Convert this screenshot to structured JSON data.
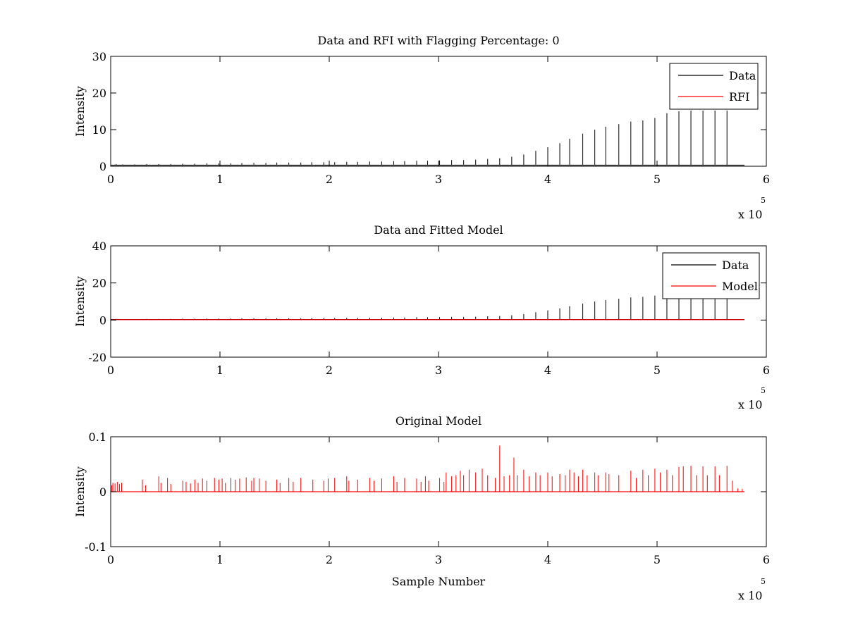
{
  "figure": {
    "background": "#ffffff"
  },
  "chart_data": [
    {
      "type": "line",
      "title": "Data and RFI with Flagging Percentage: 0",
      "xlabel": "",
      "ylabel": "Intensity",
      "xlim": [
        0,
        6
      ],
      "ylim": [
        0,
        30
      ],
      "x_multiplier": "x 10",
      "x_multiplier_exp": "5",
      "xticks": [
        0,
        1,
        2,
        3,
        4,
        5,
        6
      ],
      "yticks": [
        0,
        10,
        20,
        30
      ],
      "xtick_labels": [
        "0",
        "1",
        "2",
        "3",
        "4",
        "5",
        "6"
      ],
      "ytick_labels": [
        "0",
        "10",
        "20",
        "30"
      ],
      "legend": {
        "placement": "top-right",
        "entries": [
          {
            "label": "Data",
            "color": "#000000"
          },
          {
            "label": "RFI",
            "color": "#ff0000"
          }
        ]
      },
      "series": [
        {
          "name": "Data",
          "color": "#000000",
          "baseline": 0.3,
          "x_end": 5.8,
          "spikes": [
            [
              0.05,
              0.6
            ],
            [
              0.11,
              0.5
            ],
            [
              0.22,
              0.5
            ],
            [
              0.33,
              0.6
            ],
            [
              0.44,
              0.6
            ],
            [
              0.55,
              0.6
            ],
            [
              0.66,
              0.7
            ],
            [
              0.77,
              0.7
            ],
            [
              0.88,
              0.8
            ],
            [
              0.99,
              0.8
            ],
            [
              1.1,
              0.8
            ],
            [
              1.2,
              0.9
            ],
            [
              1.31,
              0.9
            ],
            [
              1.42,
              0.9
            ],
            [
              1.52,
              1.0
            ],
            [
              1.63,
              1.0
            ],
            [
              1.74,
              1.0
            ],
            [
              1.84,
              1.1
            ],
            [
              1.95,
              1.1
            ],
            [
              2.05,
              1.1
            ],
            [
              2.16,
              1.2
            ],
            [
              2.26,
              1.2
            ],
            [
              2.37,
              1.3
            ],
            [
              2.48,
              1.3
            ],
            [
              2.59,
              1.4
            ],
            [
              2.69,
              1.4
            ],
            [
              2.8,
              1.5
            ],
            [
              2.9,
              1.5
            ],
            [
              3.01,
              1.6
            ],
            [
              3.12,
              1.7
            ],
            [
              3.23,
              1.7
            ],
            [
              3.34,
              1.8
            ],
            [
              3.45,
              2.0
            ],
            [
              3.56,
              2.2
            ],
            [
              3.67,
              2.6
            ],
            [
              3.78,
              3.2
            ],
            [
              3.89,
              4.2
            ],
            [
              4.0,
              5.2
            ],
            [
              4.11,
              6.3
            ],
            [
              4.2,
              7.5
            ],
            [
              4.32,
              8.9
            ],
            [
              4.43,
              10.0
            ],
            [
              4.53,
              10.8
            ],
            [
              4.65,
              11.5
            ],
            [
              4.76,
              12.2
            ],
            [
              4.87,
              12.5
            ],
            [
              4.98,
              13.2
            ],
            [
              5.09,
              14.5
            ],
            [
              5.2,
              15.0
            ],
            [
              5.31,
              15.2
            ],
            [
              5.42,
              15.2
            ],
            [
              5.53,
              15.2
            ],
            [
              5.64,
              15.2
            ]
          ]
        },
        {
          "name": "RFI",
          "color": "#ff0000",
          "values": []
        }
      ]
    },
    {
      "type": "line",
      "title": "Data and Fitted Model",
      "xlabel": "",
      "ylabel": "Intensity",
      "xlim": [
        0,
        6
      ],
      "ylim": [
        -20,
        40
      ],
      "x_multiplier": "x 10",
      "x_multiplier_exp": "5",
      "xticks": [
        0,
        1,
        2,
        3,
        4,
        5,
        6
      ],
      "yticks": [
        -20,
        0,
        20,
        40
      ],
      "xtick_labels": [
        "0",
        "1",
        "2",
        "3",
        "4",
        "5",
        "6"
      ],
      "ytick_labels": [
        "-20",
        "0",
        "20",
        "40"
      ],
      "legend": {
        "placement": "top-right",
        "entries": [
          {
            "label": "Data",
            "color": "#000000"
          },
          {
            "label": "Model",
            "color": "#ff0000"
          }
        ]
      },
      "series": [
        {
          "name": "Data",
          "color": "#000000",
          "baseline": 0.3,
          "x_end": 5.8,
          "spikes": [
            [
              0.05,
              0.6
            ],
            [
              0.11,
              0.5
            ],
            [
              0.22,
              0.5
            ],
            [
              0.33,
              0.6
            ],
            [
              0.44,
              0.6
            ],
            [
              0.55,
              0.6
            ],
            [
              0.66,
              0.7
            ],
            [
              0.77,
              0.7
            ],
            [
              0.88,
              0.8
            ],
            [
              0.99,
              0.8
            ],
            [
              1.1,
              0.8
            ],
            [
              1.2,
              0.9
            ],
            [
              1.31,
              0.9
            ],
            [
              1.42,
              0.9
            ],
            [
              1.52,
              1.0
            ],
            [
              1.63,
              1.0
            ],
            [
              1.74,
              1.0
            ],
            [
              1.84,
              1.1
            ],
            [
              1.95,
              1.1
            ],
            [
              2.05,
              1.1
            ],
            [
              2.16,
              1.2
            ],
            [
              2.26,
              1.2
            ],
            [
              2.37,
              1.3
            ],
            [
              2.48,
              1.3
            ],
            [
              2.59,
              1.4
            ],
            [
              2.69,
              1.4
            ],
            [
              2.8,
              1.5
            ],
            [
              2.9,
              1.5
            ],
            [
              3.01,
              1.6
            ],
            [
              3.12,
              1.7
            ],
            [
              3.23,
              1.7
            ],
            [
              3.34,
              1.8
            ],
            [
              3.45,
              2.0
            ],
            [
              3.56,
              2.2
            ],
            [
              3.67,
              2.6
            ],
            [
              3.78,
              3.2
            ],
            [
              3.89,
              4.2
            ],
            [
              4.0,
              5.2
            ],
            [
              4.11,
              6.3
            ],
            [
              4.2,
              7.5
            ],
            [
              4.32,
              8.9
            ],
            [
              4.43,
              10.0
            ],
            [
              4.53,
              10.8
            ],
            [
              4.65,
              11.5
            ],
            [
              4.76,
              12.2
            ],
            [
              4.87,
              12.5
            ],
            [
              4.98,
              13.2
            ],
            [
              5.09,
              14.5
            ],
            [
              5.2,
              15.0
            ],
            [
              5.31,
              15.2
            ],
            [
              5.42,
              15.2
            ],
            [
              5.53,
              15.2
            ],
            [
              5.64,
              15.2
            ]
          ]
        },
        {
          "name": "Model",
          "color": "#ff0000",
          "baseline": 0.2,
          "x_end": 5.8
        }
      ]
    },
    {
      "type": "line",
      "title": "Original Model",
      "xlabel": "Sample Number",
      "ylabel": "Intensity",
      "xlim": [
        0,
        6
      ],
      "ylim": [
        -0.1,
        0.1
      ],
      "x_multiplier": "x 10",
      "x_multiplier_exp": "5",
      "xticks": [
        0,
        1,
        2,
        3,
        4,
        5,
        6
      ],
      "yticks": [
        -0.1,
        0,
        0.1
      ],
      "xtick_labels": [
        "0",
        "1",
        "2",
        "3",
        "4",
        "5",
        "6"
      ],
      "ytick_labels": [
        "-0.1",
        "0",
        "0.1"
      ],
      "series": [
        {
          "name": "",
          "color": "#ff0000",
          "baseline": 0.0,
          "x_end": 5.8,
          "spikes": [
            [
              0.01,
              0.012
            ],
            [
              0.02,
              0.016
            ],
            [
              0.04,
              0.015
            ],
            [
              0.06,
              0.018
            ],
            [
              0.08,
              0.014
            ],
            [
              0.1,
              0.016
            ],
            [
              0.29,
              0.022
            ],
            [
              0.32,
              0.012
            ],
            [
              0.44,
              0.028
            ],
            [
              0.46,
              0.016
            ],
            [
              0.52,
              0.025
            ],
            [
              0.55,
              0.014
            ],
            [
              0.66,
              0.02
            ],
            [
              0.69,
              0.018
            ],
            [
              0.73,
              0.015
            ],
            [
              0.77,
              0.022
            ],
            [
              0.8,
              0.016
            ],
            [
              0.84,
              0.024
            ],
            [
              0.88,
              0.02
            ],
            [
              0.95,
              0.025
            ],
            [
              0.99,
              0.022
            ],
            [
              1.02,
              0.024
            ],
            [
              1.05,
              0.016
            ],
            [
              1.1,
              0.025
            ],
            [
              1.14,
              0.022
            ],
            [
              1.18,
              0.024
            ],
            [
              1.24,
              0.026
            ],
            [
              1.29,
              0.02
            ],
            [
              1.31,
              0.025
            ],
            [
              1.36,
              0.024
            ],
            [
              1.42,
              0.02
            ],
            [
              1.52,
              0.022
            ],
            [
              1.55,
              0.016
            ],
            [
              1.63,
              0.025
            ],
            [
              1.67,
              0.018
            ],
            [
              1.74,
              0.025
            ],
            [
              1.85,
              0.022
            ],
            [
              1.95,
              0.02
            ],
            [
              1.99,
              0.024
            ],
            [
              2.05,
              0.025
            ],
            [
              2.16,
              0.028
            ],
            [
              2.18,
              0.02
            ],
            [
              2.26,
              0.022
            ],
            [
              2.37,
              0.025
            ],
            [
              2.41,
              0.02
            ],
            [
              2.48,
              0.024
            ],
            [
              2.59,
              0.028
            ],
            [
              2.62,
              0.018
            ],
            [
              2.69,
              0.025
            ],
            [
              2.8,
              0.024
            ],
            [
              2.84,
              0.018
            ],
            [
              2.88,
              0.028
            ],
            [
              2.91,
              0.02
            ],
            [
              3.01,
              0.025
            ],
            [
              3.05,
              0.018
            ],
            [
              3.07,
              0.035
            ],
            [
              3.12,
              0.028
            ],
            [
              3.16,
              0.03
            ],
            [
              3.2,
              0.038
            ],
            [
              3.23,
              0.03
            ],
            [
              3.28,
              0.04
            ],
            [
              3.34,
              0.035
            ],
            [
              3.4,
              0.042
            ],
            [
              3.45,
              0.03
            ],
            [
              3.52,
              0.025
            ],
            [
              3.56,
              0.084
            ],
            [
              3.6,
              0.028
            ],
            [
              3.65,
              0.03
            ],
            [
              3.69,
              0.062
            ],
            [
              3.72,
              0.03
            ],
            [
              3.78,
              0.04
            ],
            [
              3.83,
              0.028
            ],
            [
              3.89,
              0.035
            ],
            [
              3.93,
              0.03
            ],
            [
              4.0,
              0.035
            ],
            [
              4.04,
              0.028
            ],
            [
              4.11,
              0.032
            ],
            [
              4.16,
              0.03
            ],
            [
              4.2,
              0.04
            ],
            [
              4.24,
              0.035
            ],
            [
              4.28,
              0.028
            ],
            [
              4.32,
              0.04
            ],
            [
              4.36,
              0.03
            ],
            [
              4.43,
              0.035
            ],
            [
              4.46,
              0.03
            ],
            [
              4.53,
              0.035
            ],
            [
              4.56,
              0.032
            ],
            [
              4.65,
              0.03
            ],
            [
              4.76,
              0.038
            ],
            [
              4.81,
              0.025
            ],
            [
              4.87,
              0.04
            ],
            [
              4.92,
              0.03
            ],
            [
              4.98,
              0.042
            ],
            [
              5.03,
              0.035
            ],
            [
              5.09,
              0.04
            ],
            [
              5.14,
              0.03
            ],
            [
              5.2,
              0.045
            ],
            [
              5.24,
              0.046
            ],
            [
              5.31,
              0.047
            ],
            [
              5.36,
              0.03
            ],
            [
              5.42,
              0.046
            ],
            [
              5.46,
              0.03
            ],
            [
              5.53,
              0.046
            ],
            [
              5.57,
              0.03
            ],
            [
              5.64,
              0.047
            ],
            [
              5.69,
              0.02
            ],
            [
              5.74,
              0.006
            ],
            [
              5.78,
              0.005
            ]
          ]
        }
      ]
    }
  ]
}
